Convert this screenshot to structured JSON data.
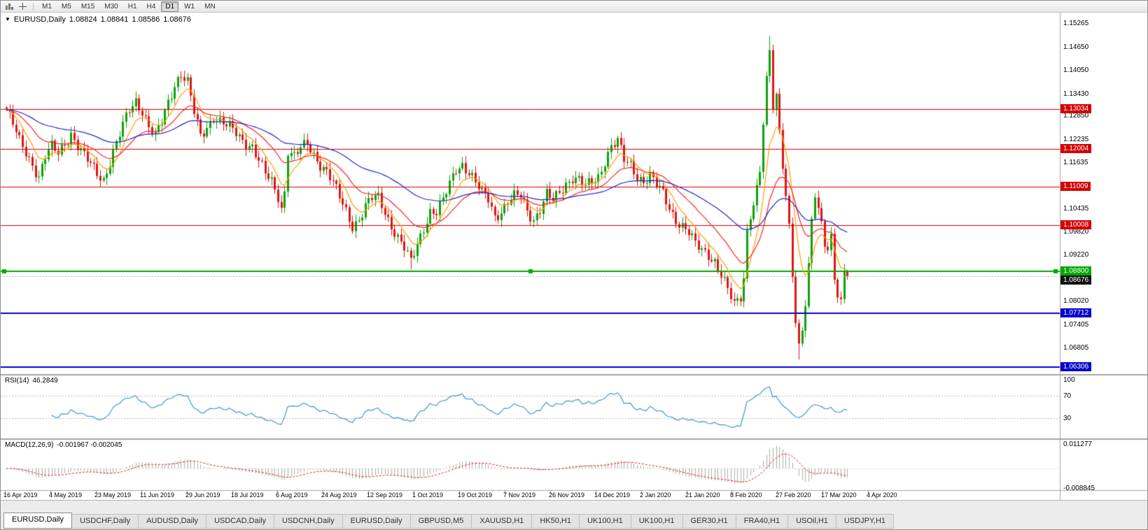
{
  "toolbar": {
    "timeframes": [
      "M1",
      "M5",
      "M15",
      "M30",
      "H1",
      "H4",
      "D1",
      "W1",
      "MN"
    ],
    "selected_timeframe": "D1"
  },
  "chart_header": {
    "arrow": "▼",
    "symbol": "EURUSD,Daily",
    "open": "1.08824",
    "high": "1.08841",
    "low": "1.08586",
    "close": "1.08676"
  },
  "indicators": {
    "rsi": {
      "label": "RSI(14)",
      "value": "46.2849"
    },
    "macd": {
      "label": "MACD(12,26,9)",
      "values": "-0.001967 -0.002045"
    }
  },
  "tabs": {
    "active_index": 0,
    "items": [
      "EURUSD,Daily",
      "USDCHF,Daily",
      "AUDUSD,Daily",
      "USDCAD,Daily",
      "USDCNH,Daily",
      "EURUSD,Daily",
      "GBPUSD,M5",
      "XAUUSD,H1",
      "HK50,H1",
      "UK100,H1",
      "UK100,H1",
      "GER30,H1",
      "FRA40,H1",
      "USOil,H1",
      "USDJPY,H1"
    ]
  },
  "chart_data": {
    "type": "candlestick",
    "symbol": "EURUSD",
    "timeframe": "Daily",
    "bar_count": 261,
    "visible_price_range": [
      1.06306,
      1.15265
    ],
    "up_color": "#0ba30b",
    "down_color": "#e01414",
    "last_candle": {
      "open": 1.08824,
      "high": 1.08841,
      "low": 1.08586,
      "close": 1.08676
    },
    "close_trajectory": [
      [
        0,
        1.1302
      ],
      [
        2,
        1.1262
      ],
      [
        4,
        1.1218
      ],
      [
        6,
        1.1192
      ],
      [
        8,
        1.1162
      ],
      [
        10,
        1.1128
      ],
      [
        12,
        1.1178
      ],
      [
        14,
        1.1202
      ],
      [
        16,
        1.1188
      ],
      [
        18,
        1.1218
      ],
      [
        20,
        1.1242
      ],
      [
        22,
        1.1208
      ],
      [
        24,
        1.1178
      ],
      [
        26,
        1.1158
      ],
      [
        28,
        1.1138
      ],
      [
        30,
        1.1122
      ],
      [
        32,
        1.1168
      ],
      [
        34,
        1.1212
      ],
      [
        36,
        1.1258
      ],
      [
        38,
        1.1302
      ],
      [
        40,
        1.1328
      ],
      [
        42,
        1.1302
      ],
      [
        44,
        1.1258
      ],
      [
        46,
        1.1228
      ],
      [
        48,
        1.1268
      ],
      [
        50,
        1.1322
      ],
      [
        52,
        1.1372
      ],
      [
        54,
        1.1398
      ],
      [
        56,
        1.1372
      ],
      [
        58,
        1.1292
      ],
      [
        60,
        1.1232
      ],
      [
        62,
        1.1258
      ],
      [
        64,
        1.1288
      ],
      [
        66,
        1.1272
      ],
      [
        68,
        1.1258
      ],
      [
        70,
        1.1248
      ],
      [
        72,
        1.1232
      ],
      [
        74,
        1.1218
      ],
      [
        76,
        1.1208
      ],
      [
        78,
        1.1168
      ],
      [
        80,
        1.1132
      ],
      [
        82,
        1.1112
      ],
      [
        84,
        1.1078
      ],
      [
        85,
        1.1048
      ],
      [
        86,
        1.1092
      ],
      [
        87,
        1.1198
      ],
      [
        89,
        1.1178
      ],
      [
        91,
        1.1198
      ],
      [
        93,
        1.1212
      ],
      [
        95,
        1.1188
      ],
      [
        97,
        1.1162
      ],
      [
        99,
        1.1142
      ],
      [
        101,
        1.1108
      ],
      [
        103,
        1.1072
      ],
      [
        105,
        1.1038
      ],
      [
        107,
        1.1002
      ],
      [
        109,
        1.1018
      ],
      [
        111,
        1.1048
      ],
      [
        113,
        1.1068
      ],
      [
        115,
        1.1072
      ],
      [
        117,
        1.1038
      ],
      [
        119,
        1.1002
      ],
      [
        121,
        1.0968
      ],
      [
        123,
        1.0938
      ],
      [
        125,
        1.0902
      ],
      [
        127,
        1.0952
      ],
      [
        129,
        1.0998
      ],
      [
        131,
        1.1038
      ],
      [
        133,
        1.1032
      ],
      [
        135,
        1.1062
      ],
      [
        137,
        1.1108
      ],
      [
        139,
        1.1152
      ],
      [
        141,
        1.1162
      ],
      [
        143,
        1.1138
      ],
      [
        145,
        1.1108
      ],
      [
        147,
        1.1082
      ],
      [
        149,
        1.1072
      ],
      [
        151,
        1.1028
      ],
      [
        153,
        1.1038
      ],
      [
        155,
        1.1058
      ],
      [
        157,
        1.1072
      ],
      [
        159,
        1.1078
      ],
      [
        161,
        1.1042
      ],
      [
        163,
        1.1018
      ],
      [
        165,
        1.1042
      ],
      [
        167,
        1.1078
      ],
      [
        169,
        1.1062
      ],
      [
        171,
        1.1088
      ],
      [
        173,
        1.1112
      ],
      [
        175,
        1.1128
      ],
      [
        177,
        1.1118
      ],
      [
        179,
        1.1098
      ],
      [
        181,
        1.1112
      ],
      [
        183,
        1.1128
      ],
      [
        185,
        1.1172
      ],
      [
        187,
        1.1208
      ],
      [
        189,
        1.1218
      ],
      [
        191,
        1.1168
      ],
      [
        193,
        1.1158
      ],
      [
        195,
        1.1132
      ],
      [
        197,
        1.1118
      ],
      [
        199,
        1.1128
      ],
      [
        201,
        1.1102
      ],
      [
        203,
        1.1082
      ],
      [
        205,
        1.1048
      ],
      [
        207,
        1.1018
      ],
      [
        209,
        1.0998
      ],
      [
        211,
        1.0978
      ],
      [
        213,
        1.0948
      ],
      [
        215,
        1.0938
      ],
      [
        217,
        1.0928
      ],
      [
        219,
        1.0908
      ],
      [
        221,
        1.0868
      ],
      [
        223,
        1.0828
      ],
      [
        225,
        1.0792
      ],
      [
        227,
        1.0818
      ],
      [
        228,
        1.0868
      ],
      [
        229,
        1.0988
      ],
      [
        230,
        1.1032
      ],
      [
        231,
        1.1058
      ],
      [
        232,
        1.1092
      ],
      [
        233,
        1.1138
      ],
      [
        234,
        1.1262
      ],
      [
        235,
        1.1372
      ],
      [
        236,
        1.1452
      ],
      [
        237,
        1.1312
      ],
      [
        238,
        1.1342
      ],
      [
        239,
        1.1252
      ],
      [
        240,
        1.1168
      ],
      [
        241,
        1.1082
      ],
      [
        242,
        1.0998
      ],
      [
        243,
        1.0872
      ],
      [
        244,
        1.0742
      ],
      [
        245,
        1.0672
      ],
      [
        246,
        1.0722
      ],
      [
        247,
        1.0792
      ],
      [
        248,
        1.0892
      ],
      [
        249,
        1.1022
      ],
      [
        250,
        1.1092
      ],
      [
        251,
        1.1048
      ],
      [
        252,
        1.1012
      ],
      [
        253,
        1.0958
      ],
      [
        254,
        1.0932
      ],
      [
        255,
        1.0962
      ],
      [
        256,
        1.0858
      ],
      [
        257,
        1.0808
      ],
      [
        258,
        1.0792
      ],
      [
        259,
        1.0886
      ],
      [
        260,
        1.08676
      ]
    ],
    "wick_overrides": [
      [
        125,
        "low",
        1.0885
      ],
      [
        236,
        "high",
        1.1495
      ],
      [
        245,
        "low",
        1.065
      ]
    ],
    "moving_averages": [
      {
        "period": 8,
        "method": "ema",
        "color": "#ff9d00"
      },
      {
        "period": 21,
        "method": "ema",
        "color": "#ff2222"
      },
      {
        "period": 55,
        "method": "ema",
        "color": "#2626c9"
      }
    ],
    "levels": [
      {
        "price": 1.13034,
        "label": "1.13034",
        "color": "#d40000",
        "width": 1
      },
      {
        "price": 1.12004,
        "label": "1.12004",
        "color": "#d40000",
        "width": 1
      },
      {
        "price": 1.11009,
        "label": "1.11009",
        "color": "#d40000",
        "width": 1
      },
      {
        "price": 1.10008,
        "label": "1.10008",
        "color": "#d40000",
        "width": 1
      },
      {
        "price": 1.088,
        "label": "1.08800",
        "color": "#00a800",
        "width": 2,
        "selected": true
      },
      {
        "price": 1.07712,
        "label": "1.07712",
        "color": "#0000cd",
        "width": 2
      },
      {
        "price": 1.06306,
        "label": "1.06306",
        "color": "#0000cd",
        "width": 2
      }
    ],
    "current_price": {
      "label": "1.08676",
      "price": 1.08676,
      "color": "#111111"
    },
    "y_axis_labels": [
      "1.15265",
      "1.14650",
      "1.14050",
      "1.13430",
      "1.12850",
      "1.12235",
      "1.11635",
      "1.10435",
      "1.09820",
      "1.09220",
      "1.08020",
      "1.07405",
      "1.06805"
    ],
    "x_labels": [
      "16 Apr 2019",
      "4 May 2019",
      "23 May 2019",
      "11 Jun 2019",
      "29 Jun 2019",
      "18 Jul 2019",
      "6 Aug 2019",
      "24 Aug 2019",
      "12 Sep 2019",
      "1 Oct 2019",
      "19 Oct 2019",
      "7 Nov 2019",
      "26 Nov 2019",
      "14 Dec 2019",
      "2 Jan 2020",
      "21 Jan 2020",
      "8 Feb 2020",
      "27 Feb 2020",
      "17 Mar 2020",
      "4 Apr 2020"
    ],
    "rsi": {
      "period": 14,
      "current": 46.2849,
      "levels": [
        70,
        30
      ],
      "axis_labels": [
        "100",
        "70",
        "30"
      ],
      "color": "#3f96d4"
    },
    "macd": {
      "fast": 12,
      "slow": 26,
      "signal": 9,
      "main": -0.001967,
      "signal_value": -0.002045,
      "axis_labels": [
        {
          "label": "0.011277",
          "value": 0.011277
        },
        {
          "label": "-0.008845",
          "value": -0.008845
        }
      ],
      "histogram_color": "#ababab",
      "signal_color": "#e02020"
    }
  }
}
